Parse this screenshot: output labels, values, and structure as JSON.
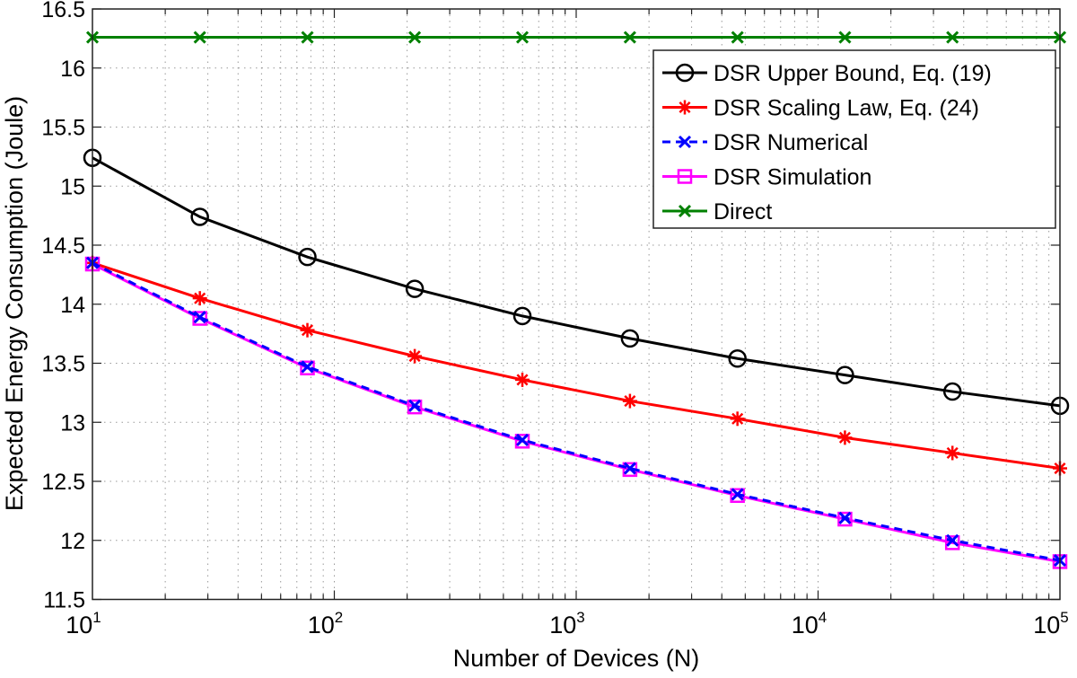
{
  "chart_data": {
    "type": "line",
    "title": "",
    "xlabel": "Number of Devices (N)",
    "ylabel": "Expected Energy Consumption (Joule)",
    "xscale": "log",
    "xlim": [
      10,
      100000
    ],
    "ylim": [
      11.5,
      16.5
    ],
    "grid": true,
    "legend_position": "top-right",
    "x_ticks": [
      10,
      100,
      1000,
      10000,
      100000
    ],
    "x_tick_labels": [
      {
        "base": "10",
        "exp": "1"
      },
      {
        "base": "10",
        "exp": "2"
      },
      {
        "base": "10",
        "exp": "3"
      },
      {
        "base": "10",
        "exp": "4"
      },
      {
        "base": "10",
        "exp": "5"
      }
    ],
    "y_ticks": [
      "11.5",
      "12",
      "12.5",
      "13",
      "13.5",
      "14",
      "14.5",
      "15",
      "15.5",
      "16",
      "16.5"
    ],
    "x": [
      10,
      27.8,
      77.4,
      215,
      599,
      1668,
      4642,
      12915,
      35938,
      100000
    ],
    "series": [
      {
        "name": "DSR Upper Bound, Eq. (19)",
        "color": "#000000",
        "marker": "circle",
        "dash": false,
        "values": [
          15.24,
          14.74,
          14.4,
          14.13,
          13.9,
          13.71,
          13.54,
          13.4,
          13.26,
          13.14
        ]
      },
      {
        "name": "DSR Scaling Law, Eq. (24)",
        "color": "#ff0000",
        "marker": "asterisk",
        "dash": false,
        "values": [
          14.35,
          14.05,
          13.78,
          13.56,
          13.36,
          13.18,
          13.03,
          12.87,
          12.74,
          12.61
        ]
      },
      {
        "name": "DSR Numerical",
        "color": "#0000ff",
        "marker": "x",
        "dash": true,
        "values": [
          14.35,
          13.89,
          13.47,
          13.14,
          12.85,
          12.61,
          12.39,
          12.19,
          12.0,
          11.83
        ]
      },
      {
        "name": "DSR Simulation",
        "color": "#ff00ff",
        "marker": "square",
        "dash": false,
        "values": [
          14.34,
          13.88,
          13.46,
          13.13,
          12.84,
          12.6,
          12.38,
          12.18,
          11.98,
          11.82
        ]
      },
      {
        "name": "Direct",
        "color": "#008000",
        "marker": "x",
        "dash": false,
        "values": [
          16.26,
          16.26,
          16.26,
          16.26,
          16.26,
          16.26,
          16.26,
          16.26,
          16.26,
          16.26
        ]
      }
    ]
  }
}
